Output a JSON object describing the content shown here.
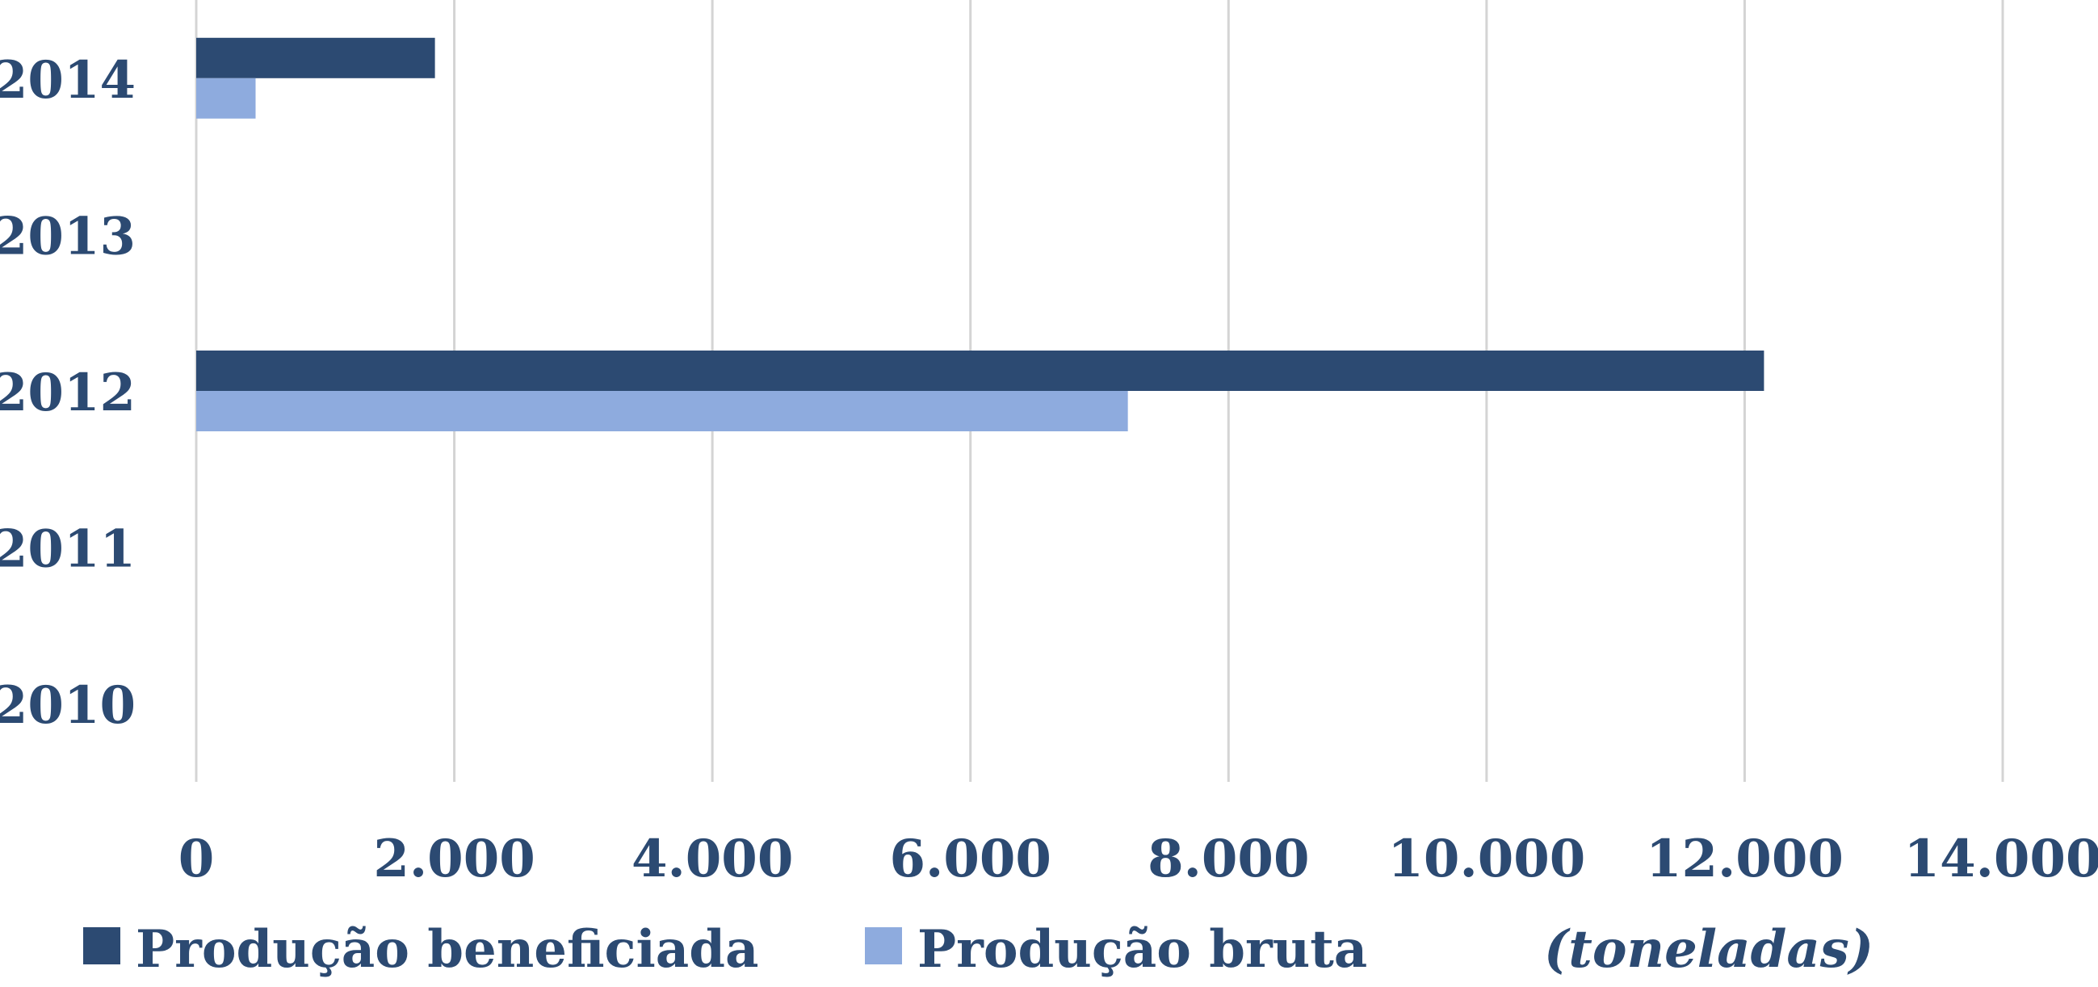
{
  "chart_data": {
    "type": "bar",
    "orientation": "horizontal",
    "categories": [
      "2010",
      "2011",
      "2012",
      "2013",
      "2014"
    ],
    "series": [
      {
        "name": "Produção beneficiada",
        "color": "#2c4a72",
        "values": [
          0,
          0,
          12150,
          0,
          1850
        ]
      },
      {
        "name": "Produção bruta",
        "color": "#8eabde",
        "values": [
          0,
          0,
          7220,
          0,
          460
        ]
      }
    ],
    "xlim": [
      0,
      14000
    ],
    "x_ticks": [
      0,
      2000,
      4000,
      6000,
      8000,
      10000,
      12000,
      14000
    ],
    "x_tick_labels": [
      "0",
      "2.000",
      "4.000",
      "6.000",
      "8.000",
      "10.000",
      "12.000",
      "14.000"
    ],
    "unit_label": "(toneladas)",
    "grid": true,
    "legend_position": "bottom"
  }
}
